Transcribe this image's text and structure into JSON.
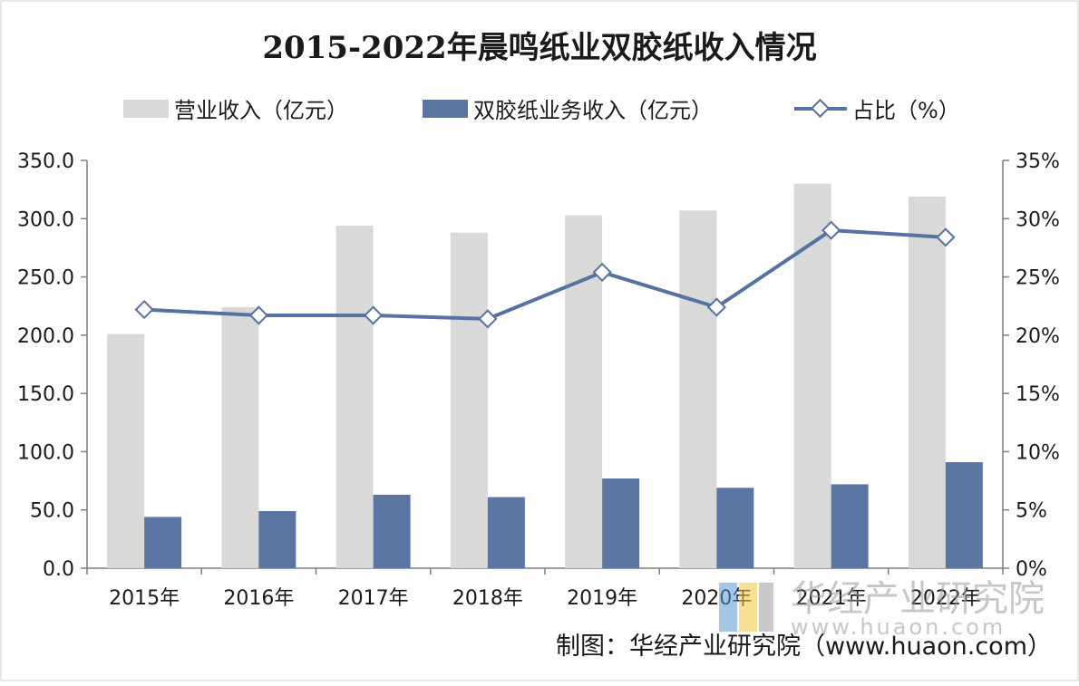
{
  "title": "2015-2022年晨鸣纸业双胶纸收入情况",
  "source": "制图：华经产业研究院（www.huaon.com）",
  "watermark": "华经产业研究院",
  "colors": {
    "revenue": "#d9d9d9",
    "paper": "#5b76a3",
    "ratio_line": "#5572a1",
    "axis": "#7f7f7f",
    "text": "#1a1a1a"
  },
  "chart_data": {
    "type": "bar",
    "categories": [
      "2015年",
      "2016年",
      "2017年",
      "2018年",
      "2019年",
      "2020年",
      "2021年",
      "2022年"
    ],
    "series": [
      {
        "name": "营业收入（亿元）",
        "type": "bar",
        "axis": "left",
        "values": [
          201.0,
          224.0,
          294.0,
          288.0,
          303.0,
          307.0,
          330.0,
          319.0
        ]
      },
      {
        "name": "双胶纸业务收入（亿元）",
        "type": "bar",
        "axis": "left",
        "values": [
          44.0,
          49.0,
          63.0,
          61.0,
          77.0,
          69.0,
          72.0,
          91.0
        ]
      },
      {
        "name": "占比（%）",
        "type": "line",
        "axis": "right",
        "values": [
          22.2,
          21.7,
          21.7,
          21.4,
          25.4,
          22.4,
          29.0,
          28.4
        ]
      }
    ],
    "y_left": {
      "ylim": [
        0,
        350
      ],
      "ticks": [
        "0.0",
        "50.0",
        "100.0",
        "150.0",
        "200.0",
        "250.0",
        "300.0",
        "350.0"
      ]
    },
    "y_right": {
      "ylim": [
        0,
        35
      ],
      "ticks": [
        "0%",
        "5%",
        "10%",
        "15%",
        "20%",
        "25%",
        "30%",
        "35%"
      ]
    },
    "legend": {
      "placement": "top"
    },
    "grid": false
  }
}
